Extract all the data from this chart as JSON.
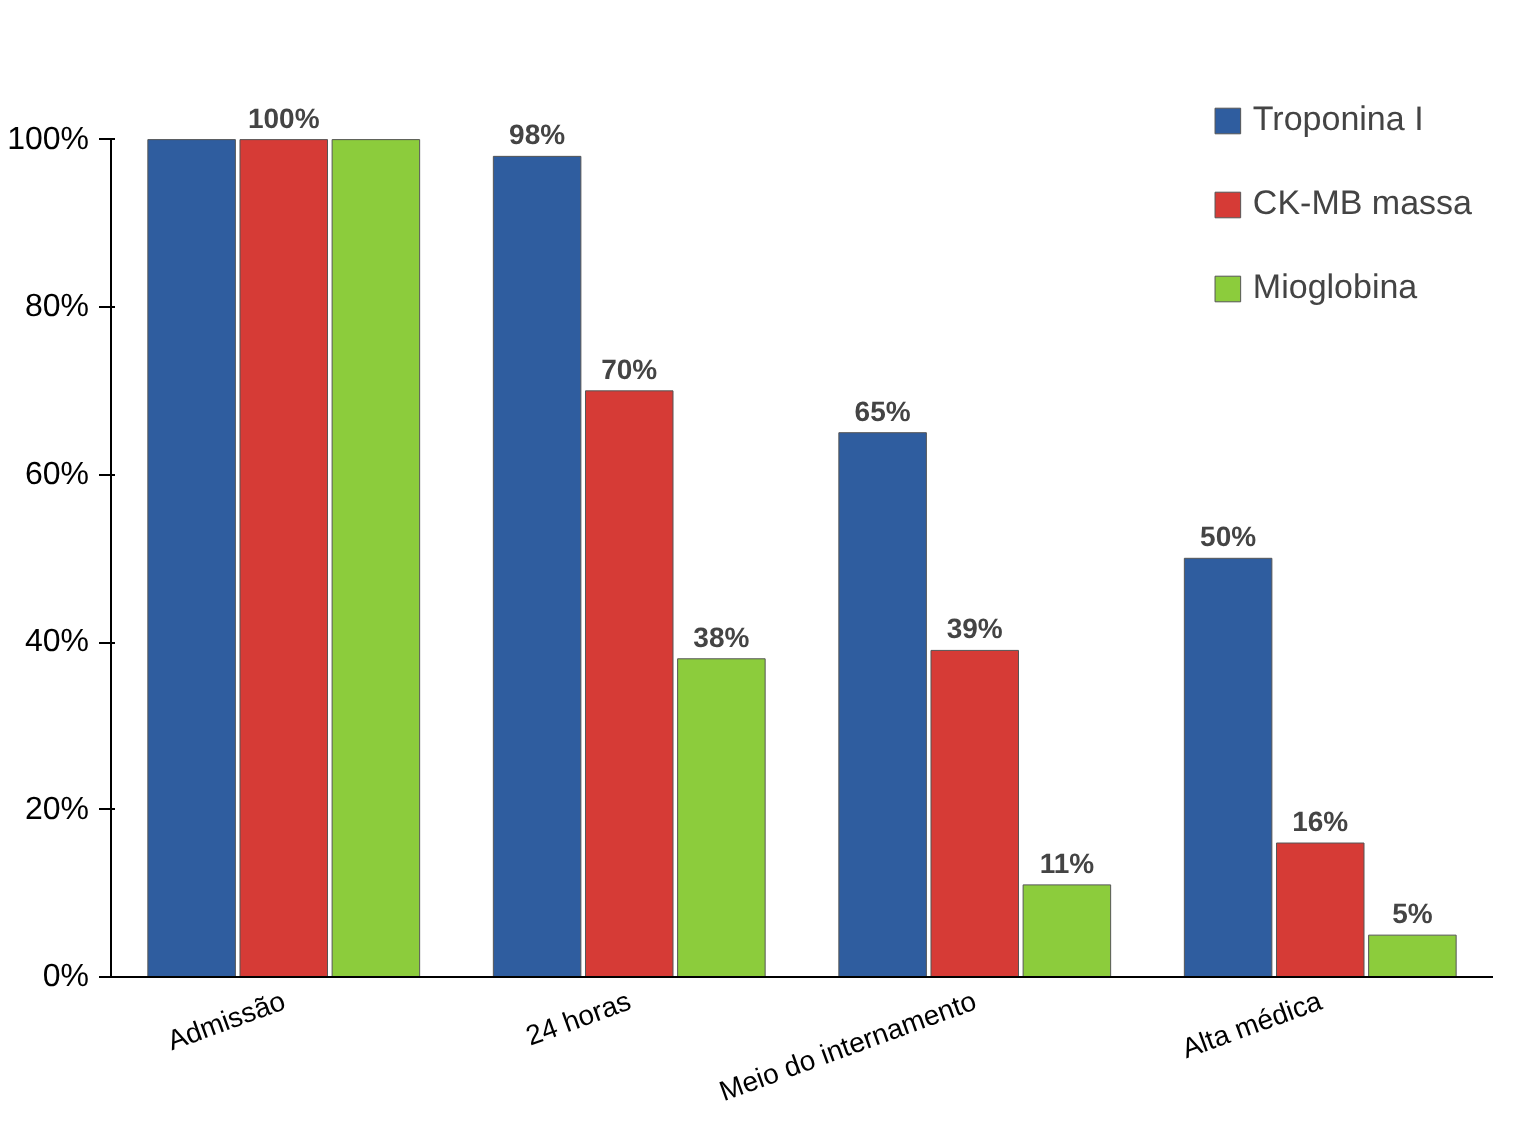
{
  "chart_data": {
    "type": "bar",
    "categories": [
      "Admissão",
      "24 horas",
      "Meio do internamento",
      "Alta médica"
    ],
    "series": [
      {
        "name": "Troponina I",
        "color": "#2f5d9f",
        "values": [
          100,
          98,
          65,
          50
        ],
        "value_labels": [
          null,
          "98%",
          "65%",
          "50%"
        ]
      },
      {
        "name": "CK-MB massa",
        "color": "#d63b36",
        "values": [
          100,
          70,
          39,
          16
        ],
        "value_labels": [
          "100%",
          "70%",
          "39%",
          "16%"
        ]
      },
      {
        "name": "Mioglobina",
        "color": "#8ccc3c",
        "values": [
          100,
          38,
          11,
          5
        ],
        "value_labels": [
          null,
          "38%",
          "11%",
          "5%"
        ]
      }
    ],
    "ylim": [
      0,
      100
    ],
    "yticks": [
      {
        "value": 0,
        "label": "0%"
      },
      {
        "value": 20,
        "label": "20%"
      },
      {
        "value": 40,
        "label": "40%"
      },
      {
        "value": 60,
        "label": "60%"
      },
      {
        "value": 80,
        "label": "80%"
      },
      {
        "value": 100,
        "label": "100%"
      }
    ],
    "legend": "top right",
    "grid": false
  }
}
